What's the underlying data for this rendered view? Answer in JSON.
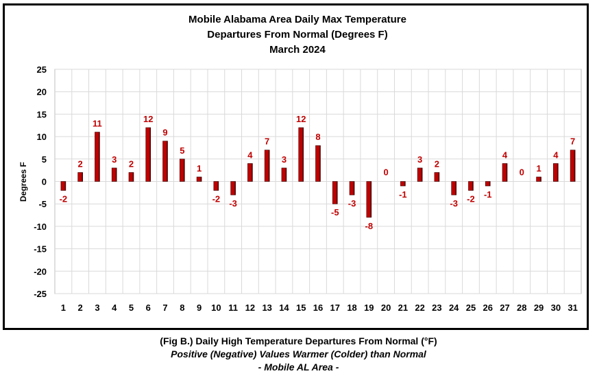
{
  "chart_data": {
    "type": "bar",
    "title_lines": [
      "Mobile Alabama Area Daily Max Temperature",
      "Departures From Normal (Degrees F)",
      "March 2024"
    ],
    "xlabel": "",
    "ylabel": "Degrees F",
    "ylim": [
      -25,
      25
    ],
    "yticks": [
      25,
      20,
      15,
      10,
      5,
      0,
      -5,
      -10,
      -15,
      -20,
      -25
    ],
    "grid": true,
    "bar_color": "#c00000",
    "label_color": "#c00000",
    "categories": [
      "1",
      "2",
      "3",
      "4",
      "5",
      "6",
      "7",
      "8",
      "9",
      "10",
      "11",
      "12",
      "13",
      "14",
      "15",
      "16",
      "17",
      "18",
      "19",
      "20",
      "21",
      "22",
      "23",
      "24",
      "25",
      "26",
      "27",
      "28",
      "29",
      "30",
      "31"
    ],
    "values": [
      -2,
      2,
      11,
      3,
      2,
      12,
      9,
      5,
      1,
      -2,
      -3,
      4,
      7,
      3,
      12,
      8,
      -5,
      -3,
      -8,
      0,
      -1,
      3,
      2,
      -3,
      -2,
      -1,
      4,
      0,
      1,
      4,
      7
    ]
  },
  "caption": {
    "line1": "(Fig B.) Daily High Temperature Departures From Normal (°F)",
    "line2": "Positive (Negative) Values Warmer (Colder) than Normal",
    "line3": "- Mobile AL Area -"
  }
}
